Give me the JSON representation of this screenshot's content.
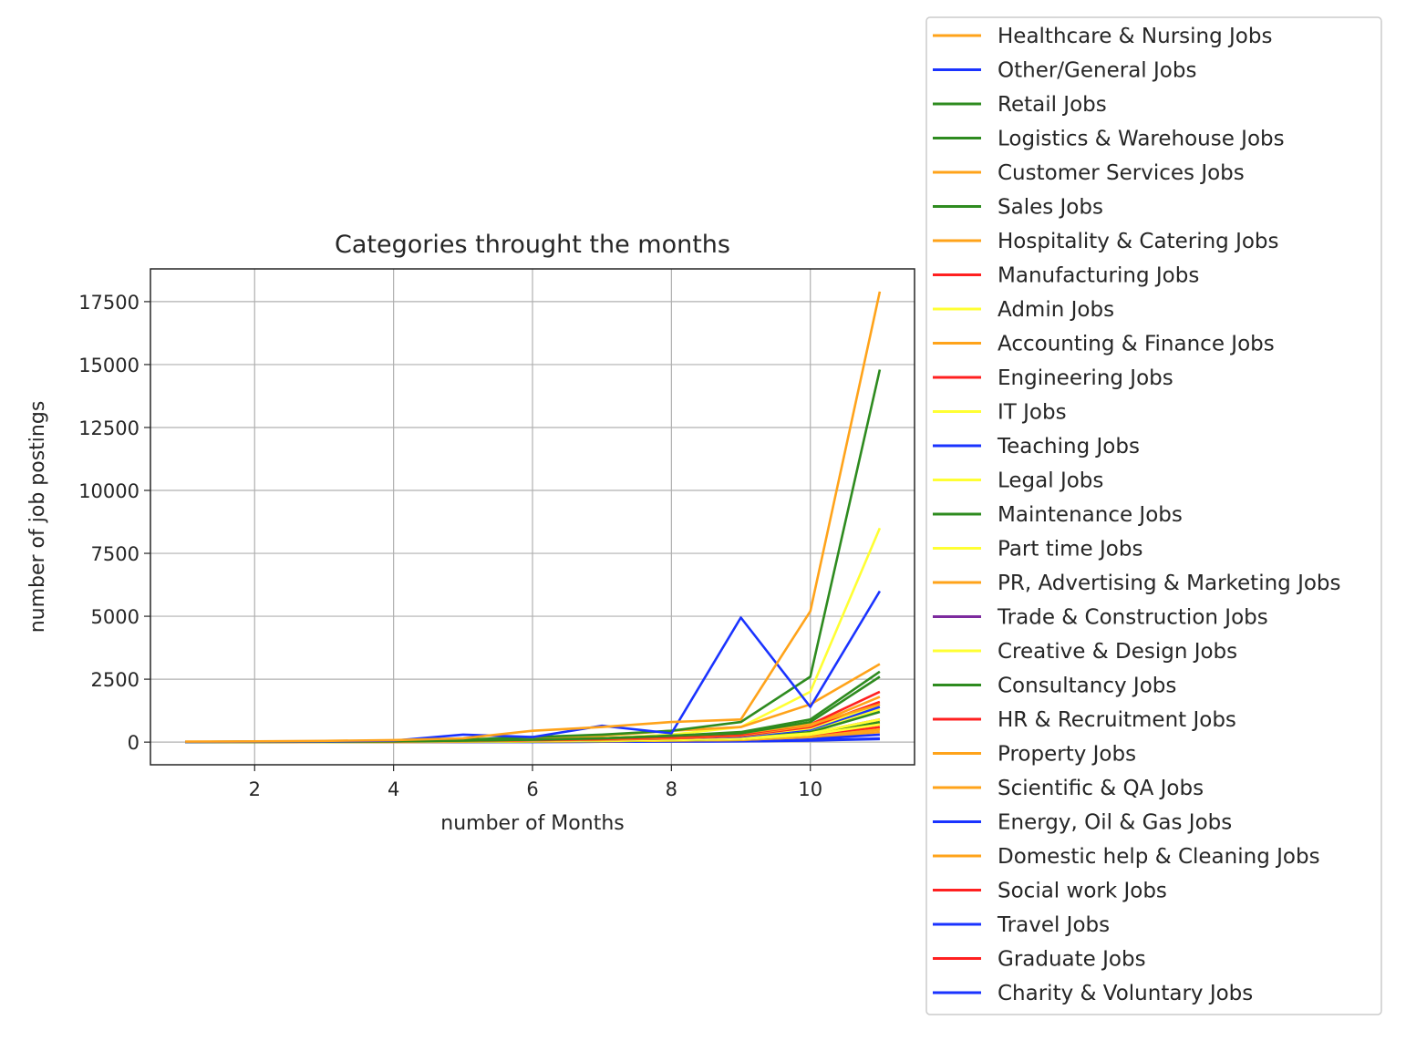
{
  "chart_data": {
    "type": "line",
    "title": "Categories throught the months",
    "xlabel": "number of Months",
    "ylabel": "number of job postings",
    "xlim": [
      0.5,
      11.5
    ],
    "ylim": [
      -900,
      18800
    ],
    "xticks": [
      2,
      4,
      6,
      8,
      10
    ],
    "yticks": [
      0,
      2500,
      5000,
      7500,
      10000,
      12500,
      15000,
      17500
    ],
    "grid": true,
    "legend_position": "outside-right",
    "colors": {
      "orange": "#ffa31a",
      "blue": "#1a33ff",
      "green": "#2e8b1f",
      "red": "#ff2020",
      "yellow": "#ffff33",
      "purple": "#7d2b9e"
    },
    "x": [
      1,
      2,
      3,
      4,
      5,
      6,
      7,
      8,
      9,
      10,
      11
    ],
    "series": [
      {
        "name": "Healthcare & Nursing Jobs",
        "color": "#ffa31a",
        "values": [
          20,
          30,
          50,
          80,
          150,
          450,
          600,
          800,
          900,
          5200,
          17900
        ]
      },
      {
        "name": "Other/General Jobs",
        "color": "#1a33ff",
        "values": [
          10,
          20,
          30,
          60,
          300,
          200,
          650,
          350,
          4950,
          1400,
          6000
        ]
      },
      {
        "name": "Retail Jobs",
        "color": "#2e8b1f",
        "values": [
          10,
          20,
          30,
          50,
          100,
          200,
          300,
          450,
          800,
          2600,
          14800
        ]
      },
      {
        "name": "Logistics & Warehouse Jobs",
        "color": "#2e8b1f",
        "values": [
          5,
          10,
          20,
          30,
          60,
          100,
          150,
          250,
          400,
          900,
          2800
        ]
      },
      {
        "name": "Customer Services Jobs",
        "color": "#ffa31a",
        "values": [
          5,
          10,
          20,
          30,
          80,
          150,
          250,
          450,
          600,
          1500,
          3100
        ]
      },
      {
        "name": "Sales Jobs",
        "color": "#2e8b1f",
        "values": [
          5,
          10,
          20,
          30,
          60,
          100,
          150,
          250,
          350,
          800,
          2600
        ]
      },
      {
        "name": "Hospitality & Catering Jobs",
        "color": "#ffa31a",
        "values": [
          5,
          10,
          15,
          25,
          50,
          100,
          150,
          250,
          350,
          700,
          1500
        ]
      },
      {
        "name": "Manufacturing Jobs",
        "color": "#ff2020",
        "values": [
          5,
          10,
          15,
          25,
          50,
          80,
          120,
          200,
          300,
          700,
          2000
        ]
      },
      {
        "name": "Admin Jobs",
        "color": "#ffff33",
        "values": [
          5,
          10,
          15,
          25,
          50,
          80,
          150,
          300,
          600,
          2000,
          8500
        ]
      },
      {
        "name": "Accounting & Finance Jobs",
        "color": "#ffa31a",
        "values": [
          5,
          10,
          15,
          25,
          40,
          70,
          100,
          180,
          280,
          650,
          1800
        ]
      },
      {
        "name": "Engineering Jobs",
        "color": "#ff2020",
        "values": [
          5,
          10,
          15,
          25,
          40,
          70,
          100,
          150,
          250,
          600,
          1600
        ]
      },
      {
        "name": "IT Jobs",
        "color": "#ffff33",
        "values": [
          5,
          10,
          15,
          20,
          35,
          60,
          90,
          150,
          250,
          550,
          1500
        ]
      },
      {
        "name": "Teaching Jobs",
        "color": "#1a33ff",
        "values": [
          5,
          10,
          15,
          20,
          35,
          60,
          90,
          150,
          220,
          500,
          1400
        ]
      },
      {
        "name": "Legal Jobs",
        "color": "#ffff33",
        "values": [
          5,
          5,
          10,
          15,
          25,
          40,
          60,
          100,
          150,
          350,
          900
        ]
      },
      {
        "name": "Maintenance Jobs",
        "color": "#2e8b1f",
        "values": [
          5,
          5,
          10,
          15,
          25,
          40,
          60,
          100,
          150,
          400,
          1200
        ]
      },
      {
        "name": "Part time Jobs",
        "color": "#ffff33",
        "values": [
          5,
          10,
          15,
          20,
          35,
          60,
          90,
          150,
          220,
          500,
          1300
        ]
      },
      {
        "name": "PR, Advertising & Marketing Jobs",
        "color": "#ffa31a",
        "values": [
          5,
          5,
          10,
          15,
          25,
          40,
          60,
          100,
          150,
          350,
          900
        ]
      },
      {
        "name": "Trade & Construction Jobs",
        "color": "#7d2b9e",
        "values": [
          5,
          10,
          15,
          20,
          35,
          60,
          90,
          150,
          220,
          550,
          1500
        ]
      },
      {
        "name": "Creative & Design Jobs",
        "color": "#ffff33",
        "values": [
          5,
          5,
          10,
          15,
          20,
          30,
          50,
          80,
          120,
          300,
          700
        ]
      },
      {
        "name": "Consultancy Jobs",
        "color": "#2e8b1f",
        "values": [
          5,
          5,
          10,
          15,
          20,
          30,
          50,
          80,
          120,
          300,
          800
        ]
      },
      {
        "name": "HR & Recruitment Jobs",
        "color": "#ff2020",
        "values": [
          5,
          5,
          10,
          15,
          25,
          40,
          60,
          100,
          150,
          350,
          900
        ]
      },
      {
        "name": "Property Jobs",
        "color": "#ffa31a",
        "values": [
          5,
          5,
          10,
          10,
          15,
          25,
          40,
          60,
          90,
          200,
          500
        ]
      },
      {
        "name": "Scientific & QA Jobs",
        "color": "#ffa31a",
        "values": [
          5,
          5,
          10,
          10,
          15,
          25,
          40,
          60,
          90,
          200,
          500
        ]
      },
      {
        "name": "Energy, Oil & Gas Jobs",
        "color": "#1a33ff",
        "values": [
          5,
          5,
          5,
          10,
          10,
          15,
          25,
          40,
          60,
          120,
          300
        ]
      },
      {
        "name": "Domestic help & Cleaning Jobs",
        "color": "#ffa31a",
        "values": [
          5,
          5,
          5,
          10,
          10,
          15,
          25,
          40,
          60,
          150,
          400
        ]
      },
      {
        "name": "Social work Jobs",
        "color": "#ff2020",
        "values": [
          5,
          5,
          10,
          10,
          15,
          25,
          40,
          60,
          90,
          250,
          700
        ]
      },
      {
        "name": "Travel Jobs",
        "color": "#1a33ff",
        "values": [
          0,
          5,
          5,
          5,
          10,
          10,
          15,
          25,
          35,
          70,
          150
        ]
      },
      {
        "name": "Graduate Jobs",
        "color": "#ff2020",
        "values": [
          5,
          5,
          10,
          10,
          15,
          25,
          40,
          60,
          90,
          200,
          600
        ]
      },
      {
        "name": "Charity & Voluntary Jobs",
        "color": "#1a33ff",
        "values": [
          0,
          5,
          5,
          5,
          10,
          10,
          15,
          20,
          30,
          60,
          120
        ]
      }
    ]
  }
}
